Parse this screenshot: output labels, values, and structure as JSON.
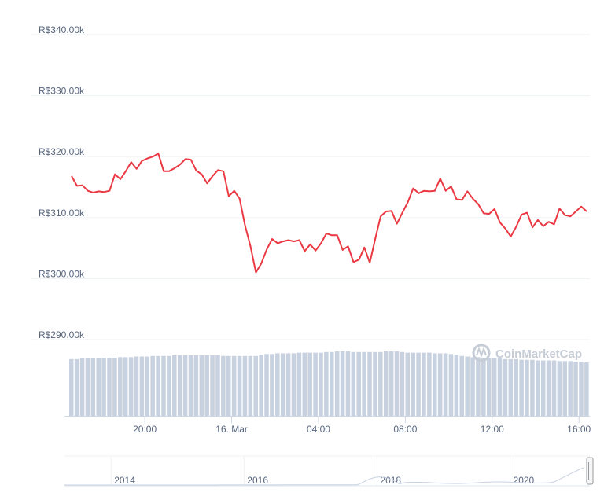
{
  "chart_data": {
    "type": "line",
    "currency_prefix": "R$",
    "y_ticks": [
      "R$340.00k",
      "R$330.00k",
      "R$320.00k",
      "R$310.00k",
      "R$300.00k",
      "R$290.00k"
    ],
    "y_tick_values": [
      340000,
      330000,
      320000,
      310000,
      300000,
      290000
    ],
    "ylim": [
      290000,
      342000
    ],
    "x_ticks": [
      "20:00",
      "16. Mar",
      "04:00",
      "08:00",
      "12:00",
      "16:00"
    ],
    "x_tick_hours": [
      20,
      24,
      28,
      32,
      36,
      40
    ],
    "x_range_hours": [
      16.3,
      40.5
    ],
    "grid": true,
    "line_color": "#ea3943",
    "volume_color": "#c8d1e0",
    "series": [
      {
        "values": [
          316800,
          315200,
          315300,
          314400,
          314100,
          314300,
          314200,
          314400,
          317100,
          316300,
          317600,
          319100,
          318000,
          319300,
          319700,
          320000,
          320500,
          317600,
          317600,
          318100,
          318700,
          319600,
          319500,
          317700,
          317100,
          315600,
          316800,
          317800,
          317600,
          313500,
          314400,
          313100,
          308700,
          305300,
          301000,
          302500,
          304800,
          306500,
          305800,
          306100,
          306300,
          306100,
          306300,
          304500,
          305600,
          304600,
          305800,
          307400,
          307100,
          307100,
          304700,
          305300,
          302700,
          303100,
          305100,
          302600,
          306500,
          310200,
          311000,
          311100,
          309000,
          310800,
          312500,
          314800,
          314000,
          314400,
          314300,
          314400,
          316400,
          314400,
          315100,
          313000,
          312900,
          314300,
          313100,
          312200,
          310700,
          310600,
          311400,
          309200,
          308200,
          306900,
          308500,
          310500,
          310800,
          308400,
          309600,
          308600,
          309300,
          308900,
          311500,
          310400,
          310200,
          311000,
          311800,
          311000
        ]
      }
    ],
    "volume": [
      0.88,
      0.88,
      0.89,
      0.89,
      0.89,
      0.89,
      0.9,
      0.9,
      0.9,
      0.91,
      0.91,
      0.91,
      0.92,
      0.92,
      0.92,
      0.93,
      0.93,
      0.93,
      0.93,
      0.94,
      0.94,
      0.94,
      0.94,
      0.94,
      0.94,
      0.94,
      0.94,
      0.94,
      0.93,
      0.93,
      0.93,
      0.93,
      0.93,
      0.93,
      0.93,
      0.95,
      0.96,
      0.96,
      0.97,
      0.97,
      0.97,
      0.97,
      0.98,
      0.98,
      0.98,
      0.98,
      0.98,
      0.99,
      0.99,
      1.0,
      1.0,
      1.0,
      0.99,
      0.99,
      0.99,
      0.99,
      0.99,
      0.99,
      1.0,
      1.0,
      1.0,
      0.99,
      0.98,
      0.98,
      0.98,
      0.98,
      0.98,
      0.97,
      0.97,
      0.97,
      0.96,
      0.95,
      0.93,
      0.92,
      0.91,
      0.91,
      0.9,
      0.9,
      0.89,
      0.89,
      0.88,
      0.88,
      0.88,
      0.87,
      0.87,
      0.87,
      0.86,
      0.86,
      0.86,
      0.86,
      0.85,
      0.85,
      0.85,
      0.84,
      0.84,
      0.83
    ],
    "navigator": {
      "ticks": [
        "2014",
        "2016",
        "2018",
        "2020"
      ],
      "tick_years": [
        2014,
        2016,
        2018,
        2020
      ],
      "range_years": [
        2013.3,
        2021.2
      ]
    }
  },
  "watermark": {
    "brand": "CoinMarketCap",
    "icon": "coinmarketcap-logo-icon"
  }
}
